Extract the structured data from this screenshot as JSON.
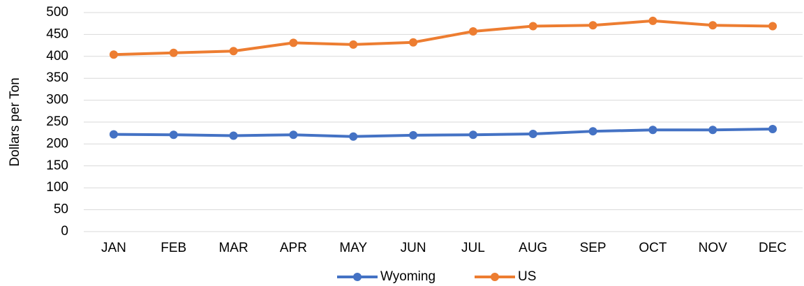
{
  "chart_data": {
    "type": "line",
    "y_label": "Dollars per Ton",
    "categories": [
      "JAN",
      "FEB",
      "MAR",
      "APR",
      "MAY",
      "JUN",
      "JUL",
      "AUG",
      "SEP",
      "OCT",
      "NOV",
      "DEC"
    ],
    "series": [
      {
        "name": "Wyoming",
        "color": "#4472c4",
        "values": [
          222,
          221,
          219,
          221,
          217,
          220,
          221,
          223,
          229,
          232,
          232,
          234
        ]
      },
      {
        "name": "US",
        "color": "#ed7d31",
        "values": [
          404,
          408,
          412,
          431,
          427,
          432,
          457,
          469,
          471,
          481,
          471,
          469
        ]
      }
    ],
    "ylim": [
      0,
      500
    ],
    "yticks": [
      0,
      50,
      100,
      150,
      200,
      250,
      300,
      350,
      400,
      450,
      500
    ],
    "grid": true,
    "legend": "bottom"
  }
}
